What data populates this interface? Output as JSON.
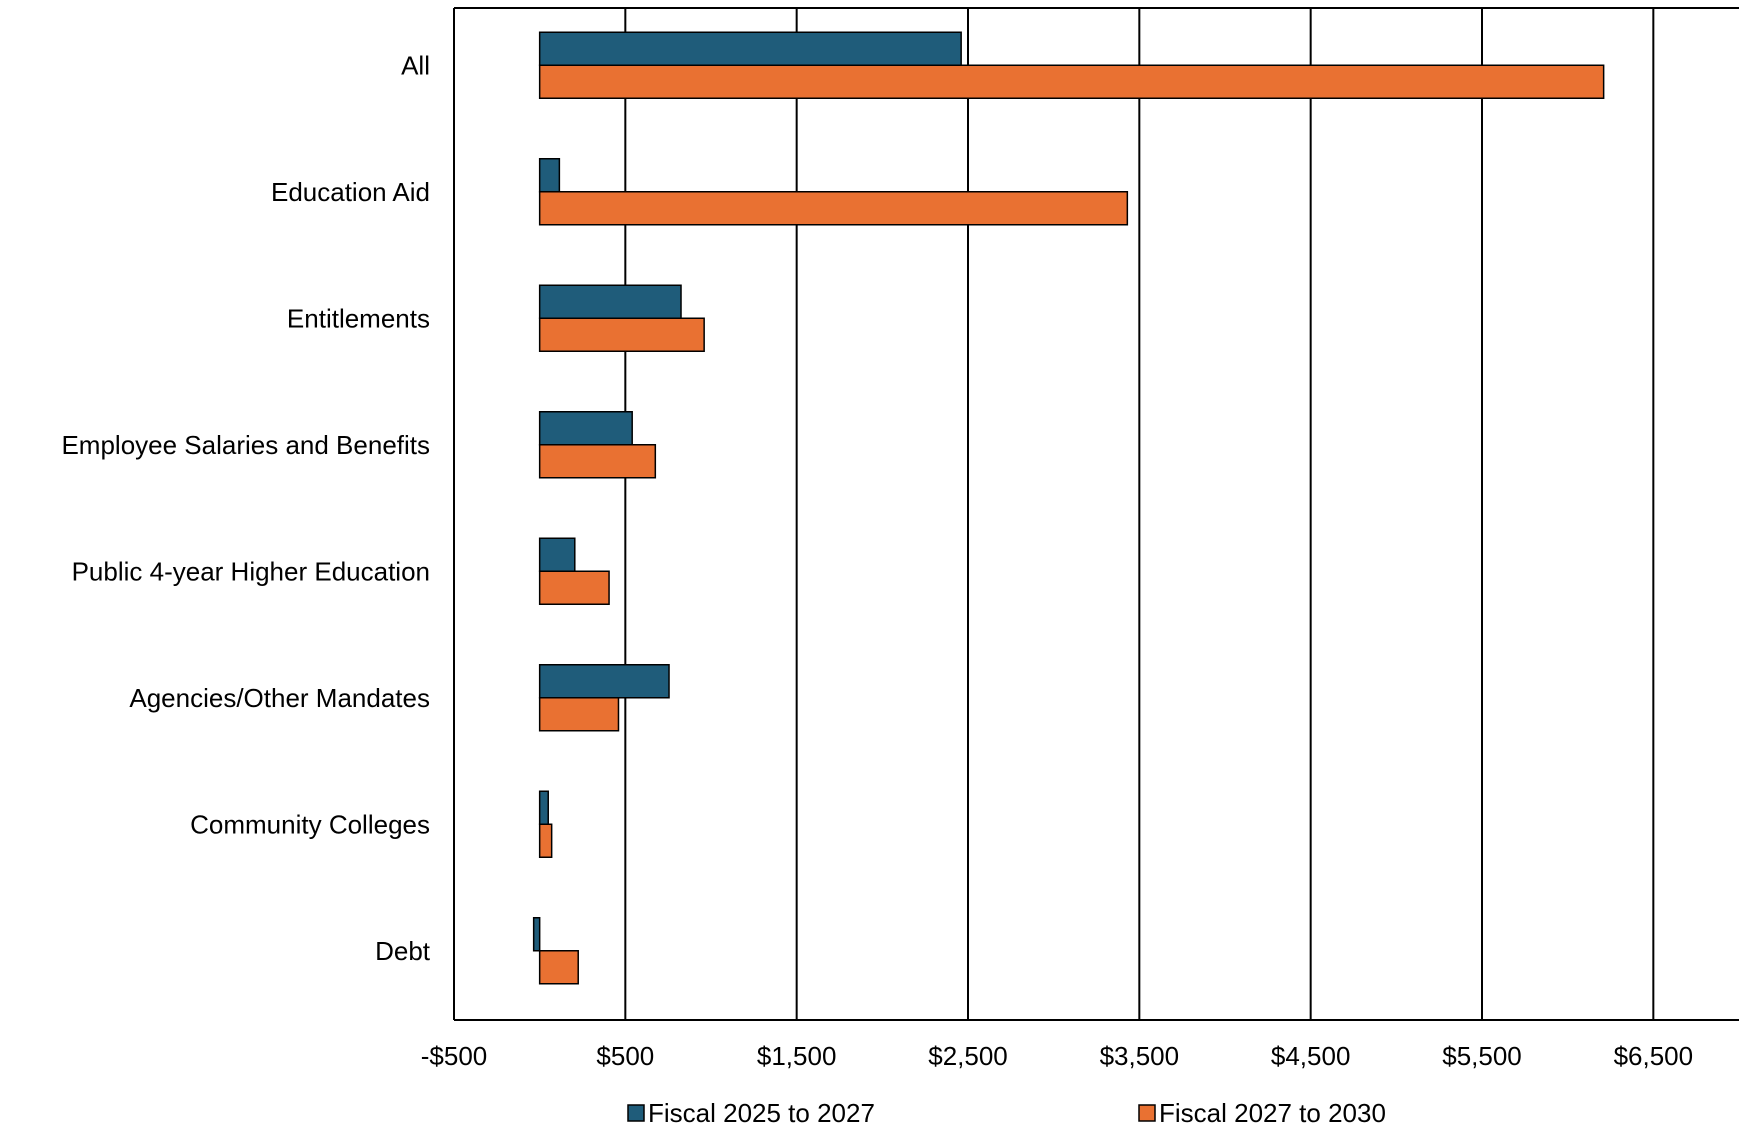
{
  "chart_data": {
    "type": "bar",
    "orientation": "horizontal",
    "categories": [
      "All",
      "Education Aid",
      "Entitlements",
      "Employee Salaries and Benefits",
      "Public 4-year Higher Education",
      "Agencies/Other Mandates",
      "Community Colleges",
      "Debt"
    ],
    "series": [
      {
        "name": "Fiscal 2025 to 2027",
        "color": "#1F5C7A",
        "values": [
          2460,
          115,
          825,
          540,
          205,
          755,
          50,
          -35
        ]
      },
      {
        "name": "Fiscal 2027 to 2030",
        "color": "#E97132",
        "values": [
          6210,
          3430,
          960,
          675,
          405,
          460,
          70,
          225
        ]
      }
    ],
    "xlim": [
      -500,
      7000
    ],
    "xticks": [
      -500,
      500,
      1500,
      2500,
      3500,
      4500,
      5500,
      6500
    ],
    "xtick_labels": [
      "-$500",
      "$500",
      "$1,500",
      "$2,500",
      "$3,500",
      "$4,500",
      "$5,500",
      "$6,500"
    ],
    "title": "",
    "xlabel": "",
    "ylabel": "",
    "grid": "vertical",
    "legend": "bottom"
  }
}
